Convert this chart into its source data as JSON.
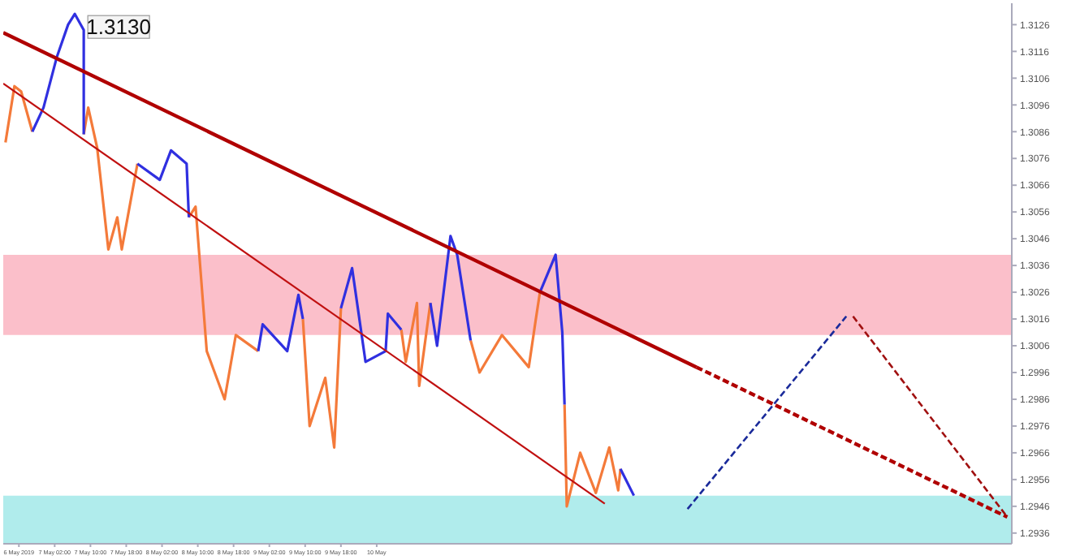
{
  "chart_data": {
    "type": "line",
    "xlim": [
      "2019-05-06T14:30",
      "2019-05-16T00:00"
    ],
    "xticks": [
      {
        "value": "2019-05-06T18:00",
        "label": "6 May 2019"
      },
      {
        "value": "2019-05-07T02:00",
        "label": "7 May 02:00"
      },
      {
        "value": "2019-05-07T10:00",
        "label": "7 May 10:00"
      },
      {
        "value": "2019-05-07T18:00",
        "label": "7 May 18:00"
      },
      {
        "value": "2019-05-08T02:00",
        "label": "8 May 02:00"
      },
      {
        "value": "2019-05-08T10:00",
        "label": "8 May 10:00"
      },
      {
        "value": "2019-05-08T18:00",
        "label": "8 May 18:00"
      },
      {
        "value": "2019-05-09T02:00",
        "label": "9 May 02:00"
      },
      {
        "value": "2019-05-09T10:00",
        "label": "9 May 10:00"
      },
      {
        "value": "2019-05-09T18:00",
        "label": "9 May 18:00"
      },
      {
        "value": "2019-05-10T02:00",
        "label": "10 May"
      }
    ],
    "ylim": [
      1.2932,
      1.3134
    ],
    "yticks": [
      1.2936,
      1.2946,
      1.2956,
      1.2966,
      1.2976,
      1.2986,
      1.2996,
      1.3006,
      1.3016,
      1.3026,
      1.3036,
      1.3046,
      1.3056,
      1.3066,
      1.3076,
      1.3086,
      1.3096,
      1.3106,
      1.3116,
      1.3126
    ],
    "bands": [
      {
        "axis": "y",
        "from": 1.301,
        "to": 1.304,
        "color": "#fbbfca"
      },
      {
        "axis": "y",
        "from": 1.2932,
        "to": 1.295,
        "color": "#b0ecec"
      }
    ],
    "annotations": [
      {
        "text": "1.3130",
        "x": "2019-05-07T06:30",
        "y": 1.313
      }
    ],
    "series": [
      {
        "color": "#f47a3a",
        "x": [
          "2019-05-06T15:00",
          "2019-05-06T17:00",
          "2019-05-06T18:30",
          "2019-05-06T21:00",
          "2019-05-06T23:00",
          "2019-05-07T08:30",
          "2019-05-07T09:30",
          "2019-05-07T11:30",
          "2019-05-07T14:00",
          "2019-05-07T16:00",
          "2019-05-07T17:00",
          "2019-05-07T20:30",
          "2019-05-08T00:00",
          "2019-05-08T08:00",
          "2019-05-08T09:30",
          "2019-05-08T12:00",
          "2019-05-08T16:00",
          "2019-05-08T18:30",
          "2019-05-08T23:30",
          "2019-05-09T04:00",
          "2019-05-09T09:30",
          "2019-05-09T11:00",
          "2019-05-09T14:30",
          "2019-05-09T16:30",
          "2019-05-09T18:00",
          "2019-05-10T02:00",
          "2019-05-10T07:30",
          "2019-05-10T08:30",
          "2019-05-10T11:00",
          "2019-05-10T11:30",
          "2019-05-10T14:00",
          "2019-05-10T17:00",
          "2019-05-10T23:00",
          "2019-05-11T01:00",
          "2019-05-11T06:00",
          "2019-05-11T12:00",
          "2019-05-11T13:30",
          "2019-05-11T14:30",
          "2019-05-11T18:00",
          "2019-05-11T20:00",
          "2019-05-11T20:30",
          "2019-05-11T23:30",
          "2019-05-12T03:00",
          "2019-05-12T06:00",
          "2019-05-12T08:00",
          "2019-05-12T08:30"
        ],
        "values": [
          1.3082,
          1.3103,
          1.3101,
          1.3086,
          null,
          1.3085,
          1.3095,
          1.308,
          1.3042,
          1.3054,
          1.3042,
          1.3074,
          null,
          1.3054,
          1.3058,
          1.3004,
          1.2986,
          1.301,
          1.3004,
          null,
          1.3016,
          1.2976,
          1.2994,
          1.2968,
          1.302,
          null,
          1.3012,
          1.3,
          1.3022,
          1.2991,
          1.3022,
          null,
          1.3008,
          1.2996,
          1.301,
          1.2998,
          1.3015,
          1.3026,
          null,
          1.2984,
          1.2946,
          1.2966,
          1.2951,
          1.2968,
          1.2952,
          1.296
        ]
      },
      {
        "color": "#3030e0",
        "x": [
          "2019-05-06T21:00",
          "2019-05-06T23:30",
          "2019-05-07T02:30",
          "2019-05-07T05:00",
          "2019-05-07T06:30",
          "2019-05-07T08:30",
          "2019-05-07T08:30",
          "2019-05-07T14:00",
          "2019-05-07T20:30",
          "2019-05-08T01:30",
          "2019-05-08T04:00",
          "2019-05-08T07:30",
          "2019-05-08T08:00",
          "2019-05-08T15:00",
          "2019-05-08T23:30",
          "2019-05-09T00:30",
          "2019-05-09T06:00",
          "2019-05-09T08:30",
          "2019-05-09T09:30",
          "2019-05-09T14:00",
          "2019-05-09T18:00",
          "2019-05-09T20:30",
          "2019-05-09T23:30",
          "2019-05-10T04:00",
          "2019-05-10T04:30",
          "2019-05-10T07:30",
          "2019-05-10T10:00",
          "2019-05-10T14:00",
          "2019-05-10T15:30",
          "2019-05-10T18:30",
          "2019-05-10T20:00",
          "2019-05-10T23:00",
          "2019-05-11T08:00",
          "2019-05-11T14:30",
          "2019-05-11T18:00",
          "2019-05-11T19:30",
          "2019-05-11T20:00",
          "2019-05-12T02:00",
          "2019-05-12T08:30",
          "2019-05-12T11:30"
        ],
        "values": [
          1.3086,
          1.3095,
          1.3114,
          1.3126,
          1.313,
          1.3124,
          1.3085,
          null,
          1.3074,
          1.3068,
          1.3079,
          1.3074,
          1.3054,
          null,
          1.3004,
          1.3014,
          1.3004,
          1.3025,
          1.3016,
          null,
          1.302,
          1.3035,
          1.3,
          1.3004,
          1.3018,
          1.3012,
          null,
          1.3022,
          1.3006,
          1.3047,
          1.304,
          1.3008,
          null,
          1.3026,
          1.304,
          1.3011,
          1.2984,
          null,
          1.296,
          1.295
        ]
      },
      {
        "color": "#b00000",
        "x": [
          "2019-05-06T14:30",
          "2019-05-13T01:30"
        ],
        "values": [
          1.3123,
          1.2998
        ]
      },
      {
        "color": "#b00000",
        "line_style": "dashed",
        "x": [
          "2019-05-13T01:30",
          "2019-05-15T23:00"
        ],
        "values": [
          1.2998,
          1.2942
        ]
      },
      {
        "color": "#c01010",
        "x": [
          "2019-05-06T14:30",
          "2019-05-12T05:00"
        ],
        "values": [
          1.3104,
          1.2947
        ]
      },
      {
        "color": "#1a2a9a",
        "line_style": "dashed",
        "x": [
          "2019-05-12T23:30",
          "2019-05-14T11:00"
        ],
        "values": [
          1.2945,
          1.3017
        ]
      },
      {
        "color": "#a01010",
        "line_style": "dashed",
        "x": [
          "2019-05-14T12:30",
          "2019-05-15T23:00"
        ],
        "values": [
          1.3017,
          1.2942
        ]
      }
    ]
  }
}
